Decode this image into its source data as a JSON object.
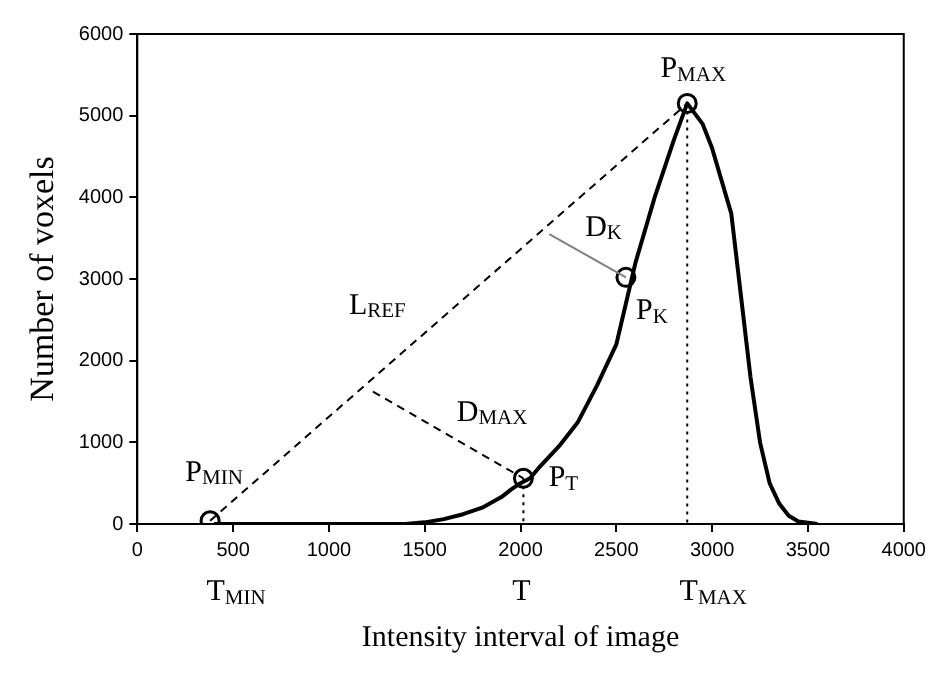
{
  "chart_data": {
    "type": "line",
    "xlabel": "Intensity interval of image",
    "ylabel": "Number of voxels",
    "xlim": [
      0,
      4000
    ],
    "xticks": [
      0,
      500,
      1000,
      1500,
      2000,
      2500,
      3000,
      3500,
      4000
    ],
    "ylim": [
      0,
      6000
    ],
    "yticks": [
      0,
      1000,
      2000,
      3000,
      4000,
      5000,
      6000
    ],
    "grid": false,
    "legend": false,
    "series": [
      {
        "color": "#000000",
        "line_style": "solid",
        "marker": "none",
        "x": [
          400,
          1400,
          1500,
          1600,
          1700,
          1800,
          1900,
          1950,
          2000,
          2050,
          2100,
          2200,
          2300,
          2400,
          2500,
          2550,
          2600,
          2700,
          2800,
          2870,
          2950,
          3000,
          3100,
          3150,
          3200,
          3250,
          3300,
          3350,
          3400,
          3450,
          3550
        ],
        "values": [
          0,
          0,
          20,
          60,
          120,
          200,
          330,
          420,
          500,
          560,
          700,
          950,
          1250,
          1700,
          2200,
          2700,
          3200,
          4000,
          4700,
          5150,
          4900,
          4600,
          3800,
          2800,
          1800,
          1000,
          500,
          250,
          100,
          30,
          0
        ]
      },
      {
        "color": "#000000",
        "line_style": "dashed",
        "marker": "none",
        "x": [
          380,
          2870
        ],
        "values": [
          40,
          5150
        ]
      },
      {
        "color": "#000000",
        "line_style": "dashed",
        "marker": "none",
        "x": [
          1230,
          2015
        ],
        "values": [
          1620,
          560
        ]
      },
      {
        "color": "#808080",
        "line_style": "solid",
        "marker": "none",
        "x": [
          2150,
          2550
        ],
        "values": [
          3550,
          3020
        ]
      },
      {
        "color": "#000000",
        "line_style": "dotted",
        "marker": "none",
        "x": [
          2015,
          2015
        ],
        "values": [
          560,
          0
        ]
      },
      {
        "color": "#000000",
        "line_style": "dotted",
        "marker": "none",
        "x": [
          2870,
          2870
        ],
        "values": [
          5150,
          0
        ]
      },
      {
        "type": "scatter",
        "color": "#000000",
        "marker": "circle",
        "x": [
          380,
          2015,
          2550,
          2870
        ],
        "values": [
          40,
          560,
          3020,
          5150
        ]
      }
    ],
    "annotations": [
      {
        "text": "P$_{MIN}$",
        "x": 380,
        "y": 40
      },
      {
        "text": "P$_{MAX}$",
        "x": 2870,
        "y": 5150
      },
      {
        "text": "P$_{K}$",
        "x": 2550,
        "y": 3020
      },
      {
        "text": "P$_{T}$",
        "x": 2015,
        "y": 560
      },
      {
        "text": "L$_{REF}$",
        "x": 1305,
        "y": 1938
      },
      {
        "text": "D$_{K}$",
        "x": 2350,
        "y": 3285
      },
      {
        "text": "D$_{MAX}$",
        "x": 1622,
        "y": 1090
      },
      {
        "text": "T$_{MIN}$",
        "x": 380,
        "y": 0
      },
      {
        "text": "T",
        "x": 2015,
        "y": 0
      },
      {
        "text": "T$_{MAX}$",
        "x": 2870,
        "y": 0
      }
    ]
  }
}
